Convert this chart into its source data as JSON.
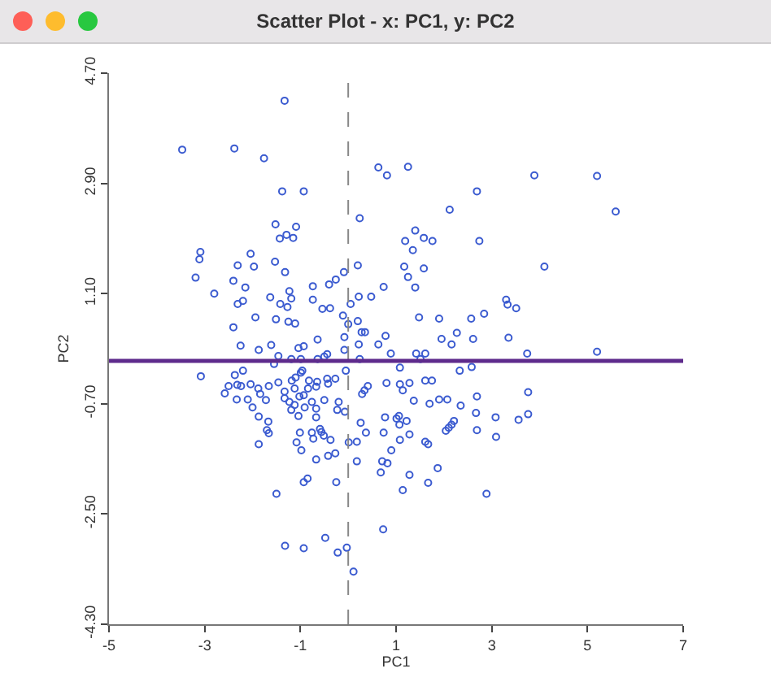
{
  "chart_data": {
    "type": "scatter",
    "title": "Scatter Plot - x: PC1, y: PC2",
    "xlabel": "PC1",
    "ylabel": "PC2",
    "color": "#3b5bd0",
    "marker": "circle",
    "xlim": [
      -5,
      7
    ],
    "ylim": [
      -4.3,
      4.7
    ],
    "xticks": [
      -5,
      -3,
      -1,
      1,
      3,
      5,
      7
    ],
    "yticks": [
      {
        "value": -4.3,
        "label": "-4.30"
      },
      {
        "value": -2.5,
        "label": "-2.50"
      },
      {
        "value": -0.7,
        "label": "-0.70"
      },
      {
        "value": 1.1,
        "label": "1.10"
      },
      {
        "value": 2.9,
        "label": "2.90"
      },
      {
        "value": 4.7,
        "label": "4.70"
      }
    ],
    "ref_lines": [
      {
        "axis": "x",
        "value": 0,
        "color": "#888888",
        "line_style": "dashed"
      },
      {
        "axis": "y",
        "value": 0,
        "color": "#5e2b8c",
        "line_style": "solid"
      }
    ],
    "x": [
      -1.33,
      -3.47,
      -2.38,
      -1.76,
      -1.38,
      -0.93,
      -1.52,
      -1.09,
      -1.29,
      -1.43,
      -1.15,
      -3.09,
      -3.11,
      -2.04,
      -2.31,
      -1.97,
      -1.53,
      -1.32,
      -3.19,
      -2.4,
      -2.15,
      -2.8,
      -1.23,
      -1.19,
      -1.63,
      -2.2,
      -2.31,
      -1.42,
      -1.27,
      -1.94,
      -1.51,
      -1.25,
      -1.11,
      -2.4,
      -2.25,
      -1.87,
      -1.61,
      -1.46,
      -1.19,
      -1.04,
      -0.93,
      0.63,
      1.25,
      0.81,
      2.69,
      2.12,
      0.24,
      1.4,
      1.19,
      1.58,
      1.76,
      2.74,
      1.35,
      0.2,
      1.17,
      1.58,
      1.25,
      -0.09,
      -0.26,
      -0.4,
      -0.74,
      0.74,
      1.4,
      -0.74,
      0.22,
      0.48,
      0.05,
      -0.54,
      -0.38,
      -0.11,
      0.2,
      0.0,
      1.48,
      1.9,
      2.57,
      2.84,
      0.28,
      0.35,
      0.78,
      1.95,
      2.27,
      2.61,
      2.16,
      -0.64,
      -0.08,
      0.22,
      0.63,
      -0.08,
      -0.44,
      -0.5,
      -0.64,
      0.24,
      0.89,
      1.42,
      1.61,
      1.51,
      3.89,
      5.2,
      5.59,
      4.1,
      3.3,
      3.33,
      3.51,
      3.35,
      3.74,
      5.2,
      -3.08,
      -2.37,
      -2.2,
      -2.5,
      -2.32,
      -2.24,
      -2.04,
      -1.88,
      -1.66,
      -1.46,
      -2.58,
      -2.33,
      -2.1,
      -1.84,
      -1.72,
      -1.33,
      -1.33,
      -1.18,
      -1.12,
      -1.02,
      -1.23,
      -2.0,
      -1.12,
      -1.19,
      -1.87,
      -1.67,
      -1.04,
      -1.7,
      -1.66,
      -1.01,
      -1.08,
      -0.98,
      -1.87,
      -0.93,
      -1.5,
      -1.32,
      -0.93,
      -1.55,
      -0.99,
      -0.99,
      -0.96,
      -0.05,
      -1.1,
      -0.82,
      -0.65,
      -0.67,
      -0.84,
      -0.44,
      -0.42,
      -0.27,
      0.34,
      0.41,
      0.29,
      0.8,
      1.08,
      1.08,
      1.28,
      1.14,
      1.61,
      1.75,
      2.33,
      2.58,
      -0.93,
      -0.76,
      -0.5,
      -0.67,
      -0.91,
      -0.2,
      -0.23,
      -0.07,
      -0.67,
      1.37,
      1.9,
      2.07,
      1.7,
      2.35,
      2.69,
      2.67,
      3.08,
      0.77,
      1.01,
      1.06,
      1.22,
      0.26,
      1.07,
      2.21,
      2.16,
      2.1,
      2.04,
      2.69,
      3.09,
      -0.76,
      -0.59,
      -0.56,
      -0.51,
      -0.73,
      -0.37,
      0.01,
      0.18,
      0.37,
      0.74,
      1.28,
      1.08,
      1.61,
      1.67,
      -0.42,
      -0.27,
      -0.67,
      0.18,
      0.9,
      0.71,
      0.82,
      0.68,
      1.28,
      1.87,
      1.67,
      1.14,
      2.89,
      -0.85,
      -0.25,
      0.73,
      -0.48,
      -0.22,
      -0.03,
      0.11,
      3.76,
      3.56,
      3.76
    ],
    "values": [
      4.25,
      3.45,
      3.47,
      3.31,
      2.77,
      2.77,
      2.23,
      2.19,
      2.06,
      2.0,
      2.01,
      1.78,
      1.66,
      1.75,
      1.56,
      1.54,
      1.62,
      1.45,
      1.36,
      1.31,
      1.2,
      1.1,
      1.14,
      1.02,
      1.04,
      0.98,
      0.93,
      0.93,
      0.88,
      0.71,
      0.68,
      0.64,
      0.61,
      0.55,
      0.25,
      0.18,
      0.26,
      0.08,
      0.03,
      0.21,
      0.24,
      3.16,
      3.17,
      3.03,
      2.77,
      2.47,
      2.33,
      2.13,
      1.96,
      2.01,
      1.96,
      1.96,
      1.81,
      1.56,
      1.54,
      1.51,
      1.37,
      1.45,
      1.33,
      1.25,
      1.22,
      1.21,
      1.2,
      1.0,
      1.05,
      1.05,
      0.93,
      0.85,
      0.86,
      0.74,
      0.65,
      0.6,
      0.71,
      0.69,
      0.69,
      0.77,
      0.47,
      0.47,
      0.41,
      0.36,
      0.46,
      0.36,
      0.27,
      0.35,
      0.39,
      0.27,
      0.27,
      0.18,
      0.11,
      0.07,
      0.03,
      0.03,
      0.12,
      0.12,
      0.12,
      0.03,
      3.03,
      3.02,
      2.44,
      1.54,
      1.0,
      0.92,
      0.86,
      0.38,
      0.12,
      0.15,
      -0.25,
      -0.23,
      -0.16,
      -0.41,
      -0.39,
      -0.41,
      -0.38,
      -0.45,
      -0.41,
      -0.35,
      -0.53,
      -0.63,
      -0.63,
      -0.54,
      -0.64,
      -0.5,
      -0.61,
      -0.32,
      -0.45,
      -0.58,
      -0.67,
      -0.76,
      -0.72,
      -0.8,
      -0.91,
      -0.99,
      -0.9,
      -1.13,
      -1.18,
      -1.17,
      -1.33,
      -1.46,
      -1.36,
      -1.98,
      -2.17,
      -3.02,
      -3.06,
      -0.05,
      -0.19,
      0.03,
      -0.16,
      -0.16,
      -0.27,
      -0.32,
      -0.34,
      -0.42,
      -0.45,
      -0.29,
      -0.37,
      -0.29,
      -0.48,
      -0.41,
      -0.54,
      -0.36,
      -0.11,
      -0.38,
      -0.36,
      -0.48,
      -0.32,
      -0.32,
      -0.16,
      -0.1,
      -0.56,
      -0.67,
      -0.64,
      -0.78,
      -0.76,
      -0.67,
      -0.8,
      -0.83,
      -0.92,
      -0.65,
      -0.63,
      -0.63,
      -0.7,
      -0.73,
      -0.58,
      -0.85,
      -0.92,
      -0.92,
      -0.94,
      -0.9,
      -0.98,
      -1.01,
      -1.04,
      -0.98,
      -1.04,
      -1.09,
      -1.14,
      -1.13,
      -1.24,
      -1.17,
      -1.11,
      -1.16,
      -1.22,
      -1.27,
      -1.29,
      -1.33,
      -1.32,
      -1.17,
      -1.17,
      -1.2,
      -1.29,
      -1.32,
      -1.36,
      -1.55,
      -1.51,
      -1.61,
      -1.64,
      -1.46,
      -1.64,
      -1.67,
      -1.82,
      -1.86,
      -1.75,
      -1.99,
      -2.11,
      -2.17,
      -1.92,
      -1.98,
      -2.75,
      -2.89,
      -3.13,
      -3.05,
      -3.44,
      -0.51,
      -0.96,
      -0.87
    ]
  }
}
